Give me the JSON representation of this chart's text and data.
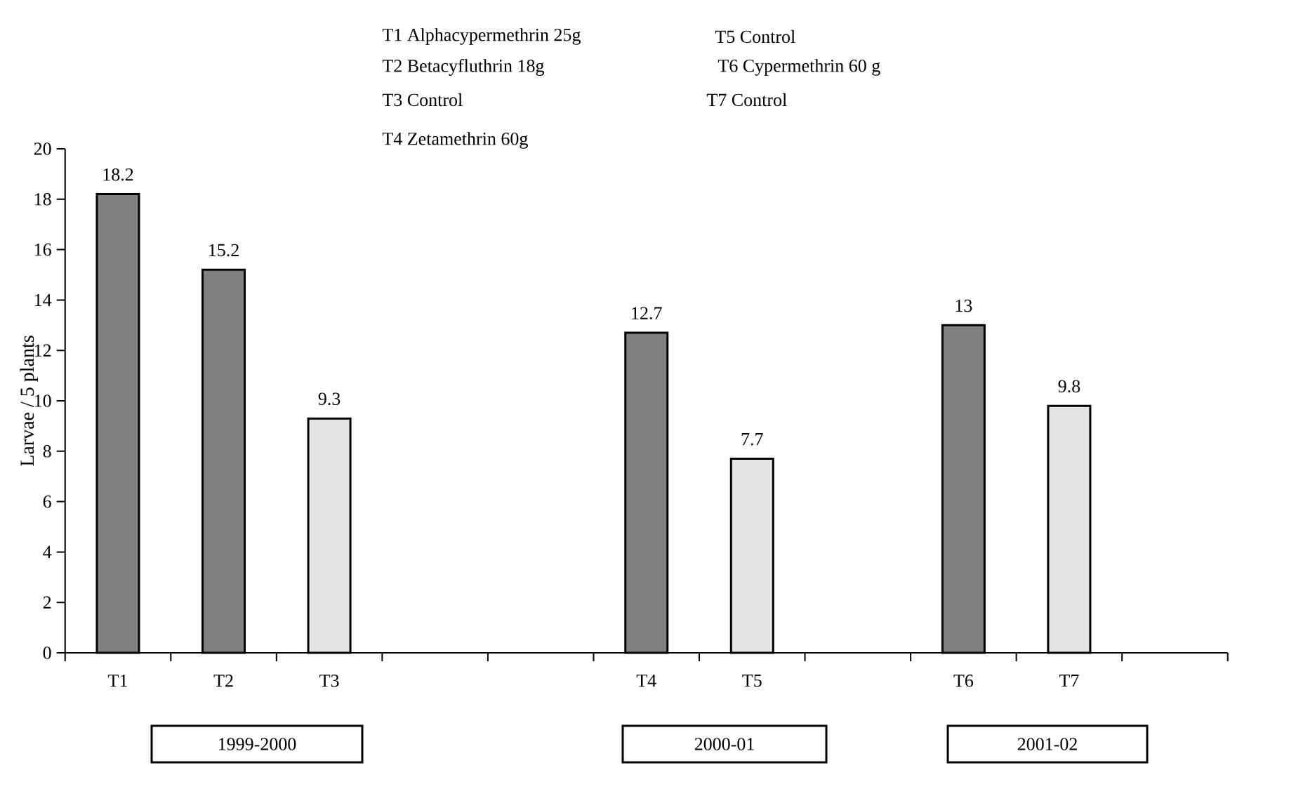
{
  "chart_data": {
    "type": "bar",
    "ylabel": "Larvae / 5 plants",
    "categories": [
      "T1",
      "T2",
      "T3",
      null,
      null,
      "T4",
      "T5",
      null,
      "T6",
      "T7",
      null
    ],
    "values": [
      18.2,
      15.2,
      9.3,
      null,
      null,
      12.7,
      7.7,
      null,
      13,
      9.8,
      null
    ],
    "colors": [
      "#808080",
      "#808080",
      "#e3e3e3",
      null,
      null,
      "#808080",
      "#e3e3e3",
      null,
      "#808080",
      "#e3e3e3",
      null
    ],
    "ylim": [
      0,
      20
    ],
    "yticks": [
      0,
      2,
      4,
      6,
      8,
      10,
      12,
      14,
      16,
      18,
      20
    ],
    "data_labels": true,
    "grid": false,
    "annotations": [
      "T1  Alphacypermethrin 25g",
      "T2  Betacyfluthrin 18g",
      "T3  Control",
      "T4 Zetamethrin 60g",
      "T5 Control",
      "T6 Cypermethrin 60 g",
      "T7  Control",
      "1999-2000",
      "2000-01",
      "2001-02"
    ]
  }
}
